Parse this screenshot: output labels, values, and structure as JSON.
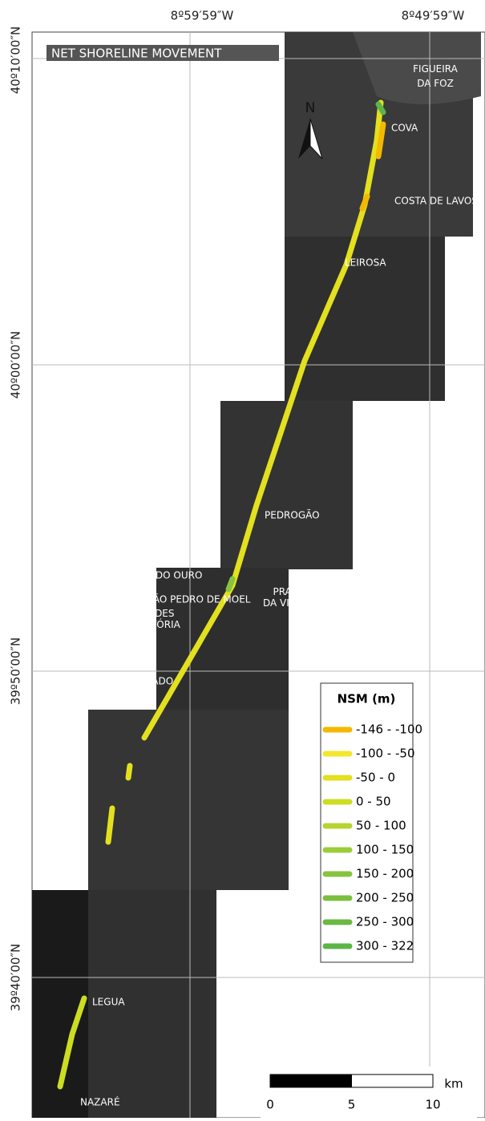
{
  "title": "NET SHORELINE MOVEMENT",
  "graticule": {
    "longitudes": [
      "8º59′59″W",
      "8º49′59″W"
    ],
    "latitudes": [
      "40º10′00″N",
      "40º00′00″N",
      "39º50′00″N",
      "39º40′00″N"
    ]
  },
  "north": "N",
  "places": [
    "FIGUEIRA DA FOZ",
    "COVA",
    "COSTA DE LAVOS",
    "LEIROSA",
    "PEDROGÃO",
    "PRAIA DA VIEIRA",
    "SÃO PEDRO DE MOEL",
    "PEDRA DO OURO",
    "PAREDES DA VITÓRIA",
    "VALE FURADO",
    "LEGUA",
    "NAZARÉ"
  ],
  "legend": {
    "title": "NSM (m)",
    "items": [
      {
        "label": "-146 - -100",
        "color": "#f5b800"
      },
      {
        "label": "-100 - -50",
        "color": "#f5e62e"
      },
      {
        "label": "-50 - 0",
        "color": "#e3e01e"
      },
      {
        "label": "0 - 50",
        "color": "#ccdd22"
      },
      {
        "label": "50 - 100",
        "color": "#b3d431"
      },
      {
        "label": "100 - 150",
        "color": "#9ccc3a"
      },
      {
        "label": "150 - 200",
        "color": "#86c43f"
      },
      {
        "label": "200 - 250",
        "color": "#7bbf3f"
      },
      {
        "label": "250 - 300",
        "color": "#6cb844"
      },
      {
        "label": "300 - 322",
        "color": "#5cb548"
      }
    ]
  },
  "scale_bar": {
    "ticks": [
      0,
      5,
      10
    ],
    "unit": "km"
  }
}
